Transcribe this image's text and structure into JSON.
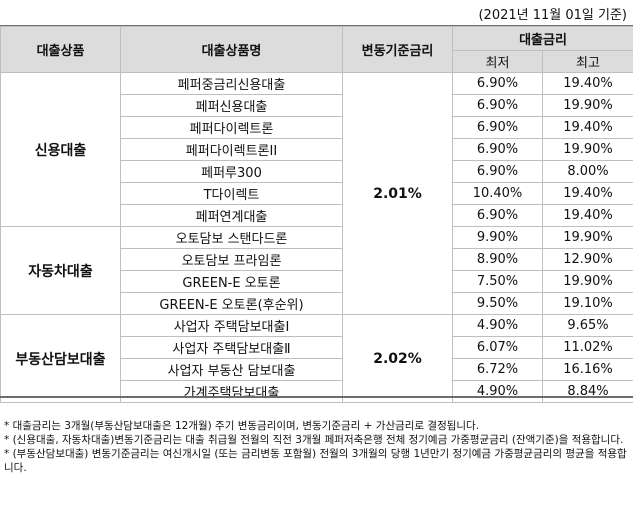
{
  "date_note": "(2021년 11월 01일 기준)",
  "header": {
    "product": "대출상품",
    "product_name": "대출상품명",
    "base_rate": "변동기준금리",
    "loan_rate": "대출금리",
    "min": "최저",
    "max": "최고"
  },
  "groups": [
    {
      "name": "신용대출",
      "base_rate": "2.01%",
      "rows": [
        {
          "name": "페퍼중금리신용대출",
          "min": "6.90%",
          "max": "19.40%"
        },
        {
          "name": "페퍼신용대출",
          "min": "6.90%",
          "max": "19.90%"
        },
        {
          "name": "페퍼다이렉트론",
          "min": "6.90%",
          "max": "19.40%"
        },
        {
          "name": "페퍼다이렉트론II",
          "min": "6.90%",
          "max": "19.90%"
        },
        {
          "name": "페퍼루300",
          "min": "6.90%",
          "max": "8.00%"
        },
        {
          "name": "T다이렉트",
          "min": "10.40%",
          "max": "19.40%"
        },
        {
          "name": "페퍼연계대출",
          "min": "6.90%",
          "max": "19.40%"
        }
      ]
    },
    {
      "name": "자동차대출",
      "rows": [
        {
          "name": "오토담보 스탠다드론",
          "min": "9.90%",
          "max": "19.90%"
        },
        {
          "name": "오토담보 프라임론",
          "min": "8.90%",
          "max": "12.90%"
        },
        {
          "name": "GREEN-E 오토론",
          "min": "7.50%",
          "max": "19.90%"
        },
        {
          "name": "GREEN-E 오토론(후순위)",
          "min": "9.50%",
          "max": "19.10%"
        }
      ]
    },
    {
      "name": "부동산담보대출",
      "base_rate": "2.02%",
      "rows": [
        {
          "name": "사업자 주택담보대출Ⅰ",
          "min": "4.90%",
          "max": "9.65%"
        },
        {
          "name": "사업자 주택담보대출Ⅱ",
          "min": "6.07%",
          "max": "11.02%"
        },
        {
          "name": "사업자 부동산 담보대출",
          "min": "6.72%",
          "max": "16.16%"
        },
        {
          "name": "가계주택담보대출",
          "min": "4.90%",
          "max": "8.84%"
        }
      ]
    }
  ],
  "notes": [
    "* 대출금리는 3개월(부동산담보대출은 12개월) 주기 변동금리이며, 변동기준금리 + 가산금리로 결정됩니다.",
    "* (신용대출, 자동차대출)변동기준금리는 대출 취급월 전월의 직전 3개월 페퍼저축은행 전체 정기예금 가중평균금리 (잔액기준)을 적용합니다.",
    "* (부동산담보대출) 변동기준금리는 여신개시일 (또는 금리변동 포함월) 전월의 3개월의 당행 1년만기 정기예금 가중평균금리의 평균을 적용합니다."
  ]
}
